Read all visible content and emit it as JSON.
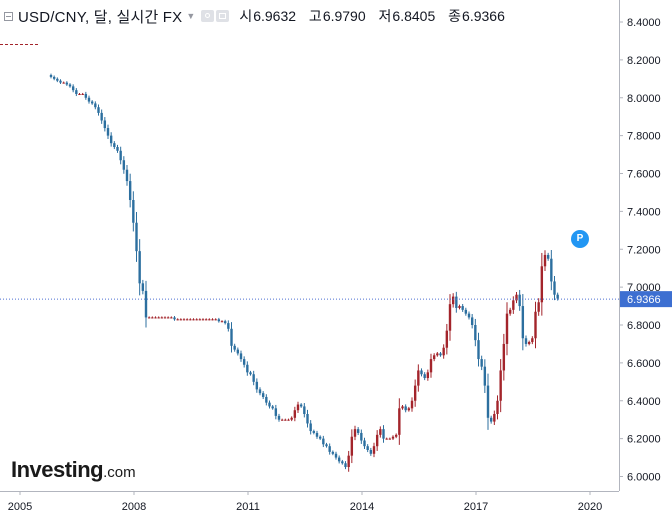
{
  "header": {
    "symbol": "USD/CNY, 달, 실시간 FX",
    "open_label": "시",
    "open_value": "6.9632",
    "high_label": "고",
    "high_value": "6.9790",
    "low_label": "저",
    "low_value": "6.8405",
    "close_label": "종",
    "close_value": "6.9366"
  },
  "logo": {
    "main": "Investing",
    "suffix": ".com"
  },
  "badge": {
    "label": "P"
  },
  "colors": {
    "up": "#a3242b",
    "down": "#2c6f9f",
    "price_line": "#4c6fd1",
    "price_tag": "#3d6fd1"
  },
  "chart_data": {
    "type": "candlestick",
    "interval": "monthly",
    "ylim": [
      5.96,
      8.48
    ],
    "y_ticks": [
      "8.4000",
      "8.2000",
      "8.0000",
      "7.8000",
      "7.6000",
      "7.4000",
      "7.2000",
      "7.0000",
      "6.8000",
      "6.6000",
      "6.4000",
      "6.2000",
      "6.0000"
    ],
    "x_ticks": [
      {
        "label": "2005",
        "year": 2005.0
      },
      {
        "label": "2008",
        "year": 2008.0
      },
      {
        "label": "2011",
        "year": 2011.0
      },
      {
        "label": "2014",
        "year": 2014.0
      },
      {
        "label": "2017",
        "year": 2017.0
      },
      {
        "label": "2020",
        "year": 2020.0
      }
    ],
    "current_price": "6.9366",
    "start": "2005-07",
    "closes": [
      8.11,
      8.1,
      8.09,
      8.08,
      8.08,
      8.07,
      8.06,
      8.04,
      8.02,
      8.02,
      8.02,
      8.0,
      7.98,
      7.97,
      7.95,
      7.92,
      7.88,
      7.84,
      7.8,
      7.76,
      7.74,
      7.72,
      7.67,
      7.62,
      7.56,
      7.46,
      7.34,
      7.19,
      7.02,
      6.98,
      6.84,
      6.84,
      6.84,
      6.84,
      6.84,
      6.84,
      6.84,
      6.84,
      6.84,
      6.83,
      6.83,
      6.83,
      6.83,
      6.83,
      6.83,
      6.83,
      6.83,
      6.83,
      6.83,
      6.83,
      6.83,
      6.83,
      6.83,
      6.82,
      6.82,
      6.81,
      6.78,
      6.69,
      6.67,
      6.65,
      6.62,
      6.59,
      6.55,
      6.54,
      6.5,
      6.46,
      6.44,
      6.42,
      6.39,
      6.37,
      6.36,
      6.32,
      6.3,
      6.3,
      6.3,
      6.3,
      6.31,
      6.35,
      6.38,
      6.37,
      6.33,
      6.28,
      6.24,
      6.23,
      6.21,
      6.2,
      6.17,
      6.16,
      6.13,
      6.12,
      6.1,
      6.08,
      6.07,
      6.05,
      6.11,
      6.21,
      6.25,
      6.23,
      6.19,
      6.16,
      6.14,
      6.12,
      6.16,
      6.22,
      6.25,
      6.2,
      6.2,
      6.2,
      6.21,
      6.22,
      6.36,
      6.37,
      6.35,
      6.36,
      6.4,
      6.48,
      6.56,
      6.54,
      6.52,
      6.55,
      6.62,
      6.64,
      6.65,
      6.64,
      6.68,
      6.77,
      6.91,
      6.95,
      6.89,
      6.9,
      6.88,
      6.86,
      6.84,
      6.8,
      6.72,
      6.62,
      6.58,
      6.48,
      6.31,
      6.29,
      6.33,
      6.4,
      6.56,
      6.7,
      6.86,
      6.88,
      6.93,
      6.96,
      6.9,
      6.73,
      6.7,
      6.71,
      6.73,
      6.87,
      6.92,
      7.11,
      7.17,
      7.15,
      7.03,
      6.96,
      6.94
    ]
  }
}
